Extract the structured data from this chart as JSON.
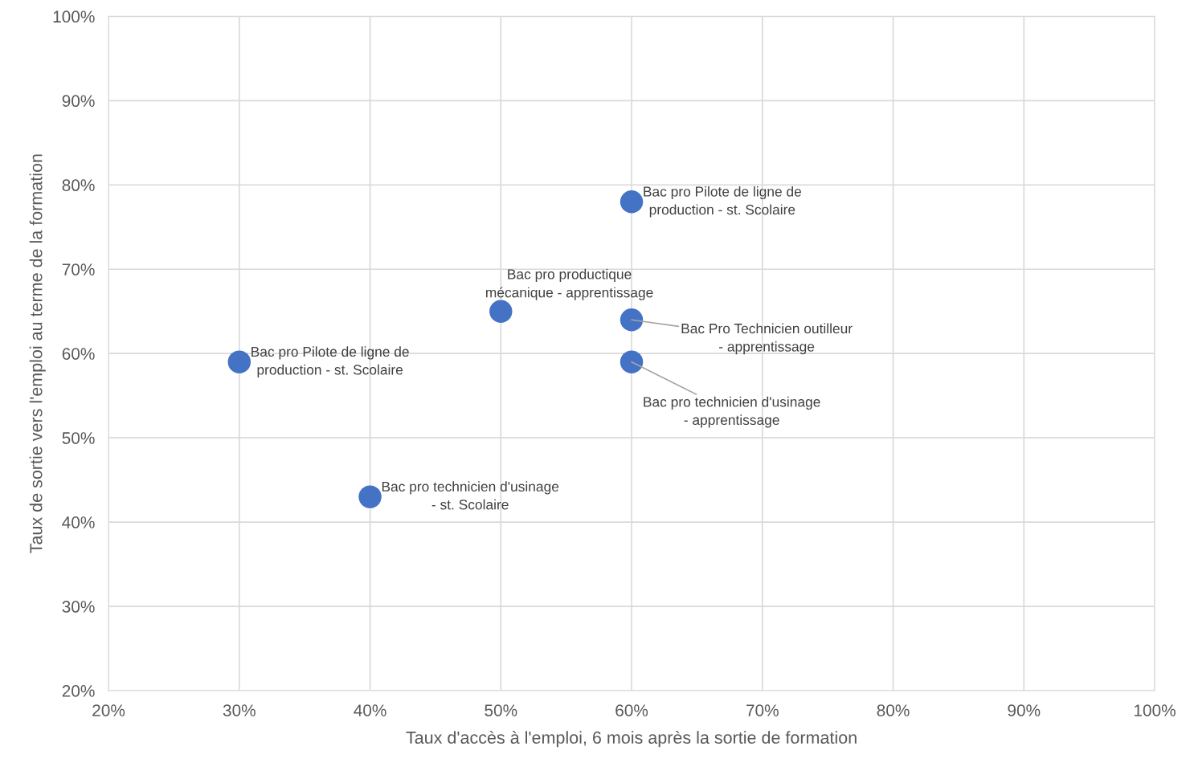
{
  "chart_data": {
    "type": "scatter",
    "xlabel": "Taux d'accès à l'emploi, 6 mois après la sortie de formation",
    "ylabel": "Taux de sortie vers l'emploi au terme de la formation",
    "x": [
      30,
      40,
      50,
      60,
      60,
      60
    ],
    "series": [
      {
        "color": "#4472c4",
        "values": [
          59,
          43,
          65,
          78,
          64,
          59
        ]
      }
    ],
    "annotations": [
      {
        "text": "Bac pro Pilote de ligne de\nproduction - st. Scolaire",
        "x": 30,
        "y": 59
      },
      {
        "text": "Bac pro technicien d'usinage\n- st. Scolaire",
        "x": 40,
        "y": 43
      },
      {
        "text": "Bac pro productique\nmécanique - apprentissage",
        "x": 50,
        "y": 65
      },
      {
        "text": "Bac pro Pilote de ligne de\nproduction - st. Scolaire",
        "x": 60,
        "y": 78
      },
      {
        "text": "Bac Pro Technicien outilleur\n- apprentissage",
        "x": 60,
        "y": 64
      },
      {
        "text": "Bac pro technicien d'usinage\n- apprentissage",
        "x": 60,
        "y": 59
      }
    ],
    "xlim": [
      20,
      100
    ],
    "ylim": [
      20,
      100
    ],
    "xticks": [
      {
        "value": 20,
        "label": "20%"
      },
      {
        "value": 30,
        "label": "30%"
      },
      {
        "value": 40,
        "label": "40%"
      },
      {
        "value": 50,
        "label": "50%"
      },
      {
        "value": 60,
        "label": "60%"
      },
      {
        "value": 70,
        "label": "70%"
      },
      {
        "value": 80,
        "label": "80%"
      },
      {
        "value": 90,
        "label": "90%"
      },
      {
        "value": 100,
        "label": "100%"
      }
    ],
    "yticks": [
      {
        "value": 20,
        "label": "20%"
      },
      {
        "value": 30,
        "label": "30%"
      },
      {
        "value": 40,
        "label": "40%"
      },
      {
        "value": 50,
        "label": "50%"
      },
      {
        "value": 60,
        "label": "60%"
      },
      {
        "value": 70,
        "label": "70%"
      },
      {
        "value": 80,
        "label": "80%"
      },
      {
        "value": 90,
        "label": "90%"
      },
      {
        "value": 100,
        "label": "100%"
      }
    ],
    "grid": true,
    "marker": "circle"
  }
}
